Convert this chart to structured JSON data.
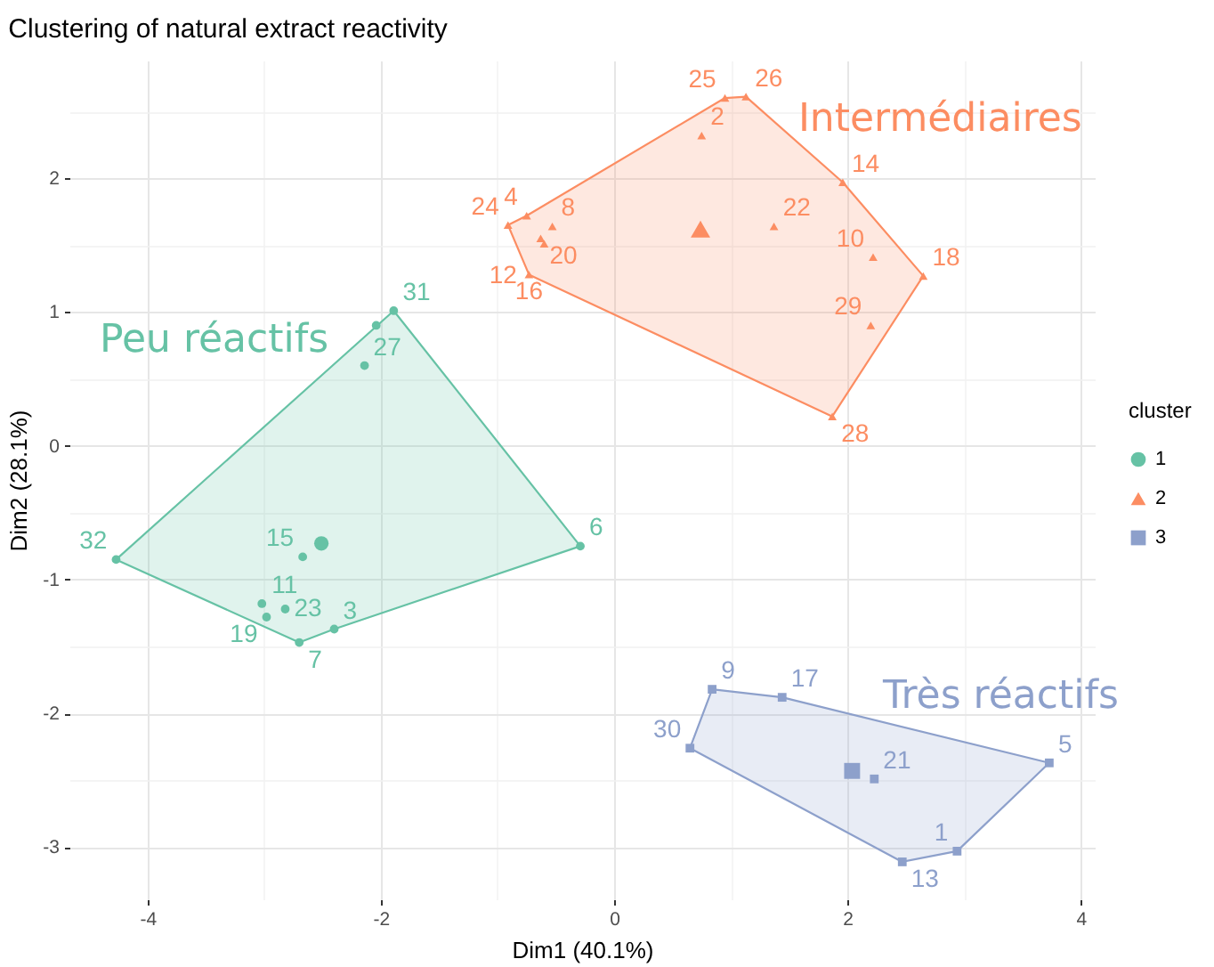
{
  "chart_data": {
    "type": "scatter",
    "title": "Clustering of natural extract reactivity",
    "xlabel": "Dim1 (40.1%)",
    "ylabel": "Dim2 (28.1%)",
    "legend_title": "cluster",
    "legend": "right",
    "grid": true,
    "xlim": [
      -4.67,
      4.12
    ],
    "ylim": [
      -3.39,
      2.88
    ],
    "xticks": [
      -4,
      {
        "value": -3,
        "label": null
      },
      -2,
      {
        "value": -1,
        "label": null
      },
      0,
      {
        "value": 1,
        "label": null
      },
      2,
      {
        "value": 3,
        "label": null
      },
      4
    ],
    "yticks": [
      -3,
      {
        "value": -2.5,
        "label": null
      },
      -2,
      {
        "value": -1.5,
        "label": null
      },
      -1,
      {
        "value": -0.5,
        "label": null
      },
      0,
      {
        "value": 0.5,
        "label": null
      },
      1,
      {
        "value": 1.5,
        "label": null
      },
      2,
      {
        "value": 2.5,
        "label": null
      }
    ],
    "series": [
      {
        "name": "Peu réactifs",
        "type": "area",
        "color": "#66c2a5",
        "x": [
          -1.89,
          -0.29,
          -2.4,
          -2.7,
          -4.27
        ],
        "values": [
          1.01,
          -0.75,
          -1.37,
          -1.47,
          -0.85
        ]
      },
      {
        "name": "Intermédiaires",
        "type": "area",
        "color": "#fc8d62",
        "x": [
          -0.91,
          -0.75,
          0.95,
          1.13,
          1.96,
          2.65,
          1.87,
          -0.73
        ],
        "values": [
          1.65,
          1.72,
          2.6,
          2.61,
          1.97,
          1.27,
          0.22,
          1.28
        ]
      },
      {
        "name": "Très réactifs",
        "type": "area",
        "color": "#8da0cb",
        "x": [
          0.84,
          1.44,
          3.73,
          2.94,
          2.47,
          0.65
        ],
        "values": [
          -1.82,
          -1.88,
          -2.37,
          -3.03,
          -3.11,
          -2.26
        ]
      },
      {
        "name": "1",
        "type": "scatter",
        "marker": "circle",
        "color": "#66c2a5",
        "x": [
          -1.89,
          -2.14,
          -2.67,
          -3.02,
          -2.82,
          -2.98,
          -2.7,
          -2.4,
          -4.27,
          -0.29,
          -2.04
        ],
        "values": [
          1.01,
          0.6,
          -0.83,
          -1.18,
          -1.22,
          -1.28,
          -1.47,
          -1.37,
          -0.85,
          -0.75,
          0.9
        ]
      },
      {
        "name": "2",
        "type": "scatter",
        "marker": "triangle",
        "color": "#fc8d62",
        "x": [
          1.13,
          0.95,
          0.75,
          -0.91,
          -0.75,
          -0.53,
          -0.63,
          -0.6,
          -0.73,
          1.96,
          1.37,
          2.22,
          2.65,
          2.2,
          1.87
        ],
        "values": [
          2.61,
          2.6,
          2.32,
          1.65,
          1.72,
          1.64,
          1.55,
          1.51,
          1.28,
          1.97,
          1.64,
          1.41,
          1.27,
          0.9,
          0.22
        ]
      },
      {
        "name": "3",
        "type": "scatter",
        "marker": "square",
        "color": "#8da0cb",
        "x": [
          0.84,
          1.44,
          0.65,
          2.23,
          3.73,
          2.94,
          2.47
        ],
        "values": [
          -1.82,
          -1.88,
          -2.26,
          -2.49,
          -2.37,
          -3.03,
          -3.11
        ]
      },
      {
        "marker": "circle",
        "color": "#66c2a5",
        "x": [
          -2.51
        ],
        "values": [
          -0.73
        ]
      },
      {
        "marker": "triangle",
        "color": "#fc8d62",
        "x": [
          0.74
        ],
        "values": [
          1.62
        ]
      },
      {
        "marker": "square",
        "color": "#8da0cb",
        "x": [
          2.04
        ],
        "values": [
          -2.43
        ]
      }
    ],
    "annotations": [
      {
        "text": "31",
        "x": -1.89,
        "y": 1.01
      },
      {
        "text": "27",
        "x": -2.14,
        "y": 0.6
      },
      {
        "text": "15",
        "x": -2.67,
        "y": -0.83
      },
      {
        "text": "11",
        "x": -3.02,
        "y": -1.18
      },
      {
        "text": "23",
        "x": -2.82,
        "y": -1.22
      },
      {
        "text": "19",
        "x": -2.98,
        "y": -1.28
      },
      {
        "text": "7",
        "x": -2.7,
        "y": -1.47
      },
      {
        "text": "3",
        "x": -2.4,
        "y": -1.37
      },
      {
        "text": "32",
        "x": -4.27,
        "y": -0.85
      },
      {
        "text": "6",
        "x": -0.29,
        "y": -0.75
      },
      {
        "text": "26",
        "x": 1.13,
        "y": 2.61
      },
      {
        "text": "25",
        "x": 0.95,
        "y": 2.6
      },
      {
        "text": "2",
        "x": 0.75,
        "y": 2.32
      },
      {
        "text": "24",
        "x": -0.91,
        "y": 1.65
      },
      {
        "text": "4",
        "x": -0.75,
        "y": 1.72
      },
      {
        "text": "8",
        "x": -0.53,
        "y": 1.64
      },
      {
        "text": "20",
        "x": -0.63,
        "y": 1.55
      },
      {
        "text": "12",
        "x": -0.6,
        "y": 1.51
      },
      {
        "text": "16",
        "x": -0.73,
        "y": 1.28
      },
      {
        "text": "14",
        "x": 1.96,
        "y": 1.97
      },
      {
        "text": "22",
        "x": 1.37,
        "y": 1.64
      },
      {
        "text": "10",
        "x": 2.22,
        "y": 1.41
      },
      {
        "text": "18",
        "x": 2.65,
        "y": 1.27
      },
      {
        "text": "29",
        "x": 2.2,
        "y": 0.9
      },
      {
        "text": "28",
        "x": 1.87,
        "y": 0.22
      },
      {
        "text": "9",
        "x": 0.84,
        "y": -1.82
      },
      {
        "text": "17",
        "x": 1.44,
        "y": -1.88
      },
      {
        "text": "30",
        "x": 0.65,
        "y": -2.26
      },
      {
        "text": "21",
        "x": 2.23,
        "y": -2.49
      },
      {
        "text": "5",
        "x": 3.73,
        "y": -2.37
      },
      {
        "text": "1",
        "x": 2.94,
        "y": -3.03
      },
      {
        "text": "13",
        "x": 2.47,
        "y": -3.11
      }
    ]
  }
}
